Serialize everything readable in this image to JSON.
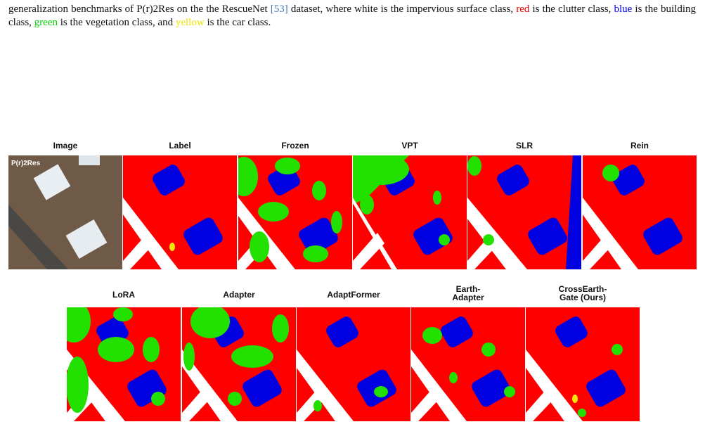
{
  "caption": [
    {
      "text": "generalization benchmarks of P(r)2Res on the the RescueNet "
    },
    {
      "text": "[53]",
      "color": "#4a7ab8"
    },
    {
      "text": " dataset, where white is the impervious surface class, "
    },
    {
      "text": "red",
      "color": "#e00000"
    },
    {
      "text": " is the clutter class, "
    },
    {
      "text": "blue",
      "color": "#0000e0"
    },
    {
      "text": " is the building class, "
    },
    {
      "text": "green",
      "color": "#00d000"
    },
    {
      "text": " is the vegetation class, and "
    },
    {
      "text": "yellow",
      "color": "#f0e400"
    },
    {
      "text": " is the car class."
    }
  ],
  "image_overlay": "P(r)2Res",
  "rows": [
    [
      "Image",
      "Label",
      "Frozen",
      "VPT",
      "SLR",
      "Rein"
    ],
    [
      "LoRA",
      "Adapter",
      "AdaptFormer",
      "Earth-\nAdapter",
      "CrossEarth-\nGate (Ours)"
    ]
  ]
}
